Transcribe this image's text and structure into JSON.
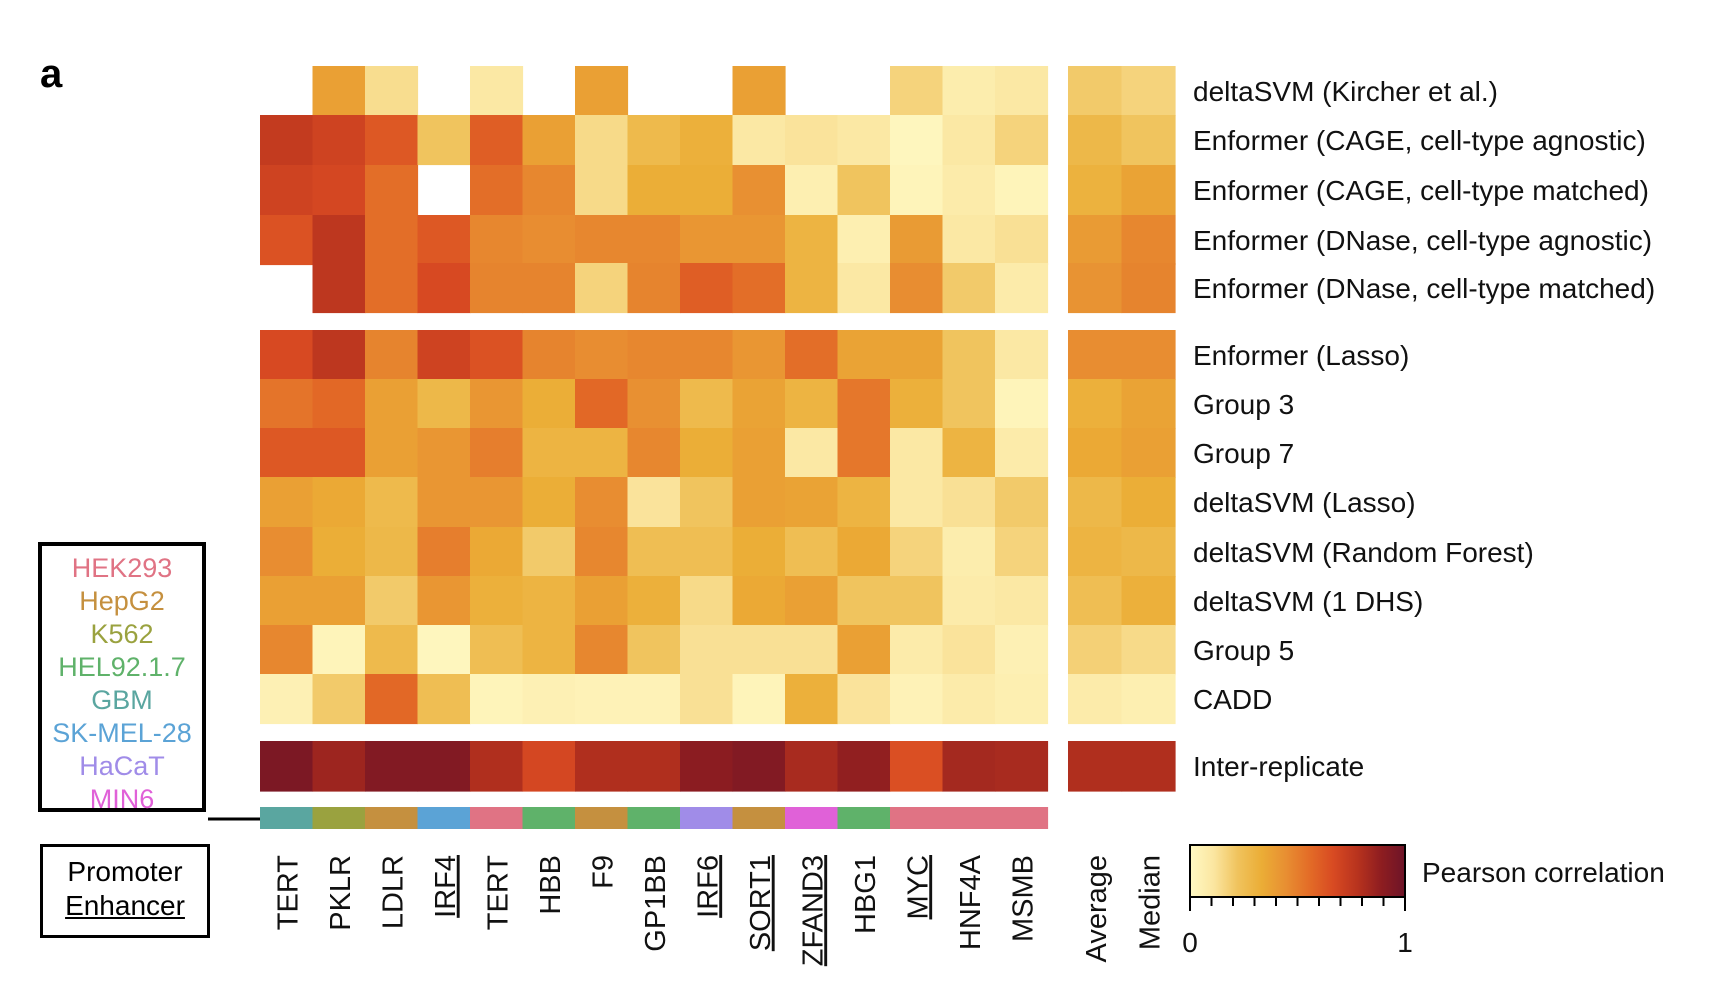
{
  "panel_label": "a",
  "colors": {
    "scale": [
      "#fff9c4",
      "#fbe6a0",
      "#f0c35d",
      "#ebad36",
      "#e88f32",
      "#e36c27",
      "#d84a22",
      "#b8331e",
      "#8e1d20",
      "#6d1428"
    ],
    "cell_lines": {
      "HEK293": "#e07384",
      "HepG2": "#c5903f",
      "K562": "#9aa23f",
      "HEL92.1.7": "#5fb26a",
      "GBM": "#5aa6a0",
      "SK-MEL-28": "#5ba3d6",
      "HaCaT": "#a08ce8",
      "MIN6": "#e061d8"
    }
  },
  "legend_cell_lines": [
    "HEK293",
    "HepG2",
    "K562",
    "HEL92.1.7",
    "GBM",
    "SK-MEL-28",
    "HaCaT",
    "MIN6"
  ],
  "legend_element_types": {
    "promoter": "Promoter",
    "enhancer": "Enhancer"
  },
  "chart_data": {
    "type": "heatmap",
    "colorbar": {
      "label": "Pearson correlation",
      "min": "0",
      "max": "1"
    },
    "columns": [
      {
        "label": "TERT",
        "cell_line": "GBM",
        "enhancer": false
      },
      {
        "label": "PKLR",
        "cell_line": "K562",
        "enhancer": false
      },
      {
        "label": "LDLR",
        "cell_line": "HepG2",
        "enhancer": false
      },
      {
        "label": "IRF4",
        "cell_line": "SK-MEL-28",
        "enhancer": true
      },
      {
        "label": "TERT",
        "cell_line": "HEK293",
        "enhancer": false
      },
      {
        "label": "HBB",
        "cell_line": "HEL92.1.7",
        "enhancer": false
      },
      {
        "label": "F9",
        "cell_line": "HepG2",
        "enhancer": false
      },
      {
        "label": "GP1BB",
        "cell_line": "HEL92.1.7",
        "enhancer": false
      },
      {
        "label": "IRF6",
        "cell_line": "HaCaT",
        "enhancer": true
      },
      {
        "label": "SORT1",
        "cell_line": "HepG2",
        "enhancer": true
      },
      {
        "label": "ZFAND3",
        "cell_line": "MIN6",
        "enhancer": true
      },
      {
        "label": "HBG1",
        "cell_line": "HEL92.1.7",
        "enhancer": false
      },
      {
        "label": "MYC",
        "cell_line": "HEK293",
        "enhancer": true
      },
      {
        "label": "HNF4A",
        "cell_line": "HEK293",
        "enhancer": false
      },
      {
        "label": "MSMB",
        "cell_line": "HEK293",
        "enhancer": false
      }
    ],
    "summary_columns": [
      "Average",
      "Median"
    ],
    "row_groups": [
      {
        "rows": [
          {
            "label": "deltaSVM (Kircher et al.)",
            "values": [
              null,
              0.38,
              0.14,
              null,
              0.1,
              null,
              0.38,
              null,
              null,
              0.38,
              null,
              null,
              0.17,
              0.07,
              0.1
            ],
            "summary": [
              0.2,
              0.17
            ]
          },
          {
            "label": "Enformer (CAGE, cell-type agnostic)",
            "values": [
              0.74,
              0.7,
              0.62,
              0.22,
              0.6,
              0.38,
              0.15,
              0.27,
              0.32,
              0.1,
              0.12,
              0.1,
              0.02,
              0.1,
              0.17
            ],
            "summary": [
              0.28,
              0.22
            ]
          },
          {
            "label": "Enformer (CAGE, cell-type matched)",
            "values": [
              0.7,
              0.68,
              0.55,
              null,
              0.55,
              0.47,
              0.15,
              0.33,
              0.33,
              0.44,
              0.06,
              0.22,
              0.03,
              0.08,
              0.03
            ],
            "summary": [
              0.31,
              0.37
            ]
          },
          {
            "label": "Enformer (DNase, cell-type agnostic)",
            "values": [
              0.64,
              0.76,
              0.55,
              0.62,
              0.47,
              0.45,
              0.47,
              0.47,
              0.42,
              0.42,
              0.3,
              0.06,
              0.4,
              0.1,
              0.13
            ],
            "summary": [
              0.4,
              0.47
            ]
          },
          {
            "label": "Enformer (DNase, cell-type matched)",
            "values": [
              null,
              0.76,
              0.55,
              0.67,
              0.48,
              0.48,
              0.17,
              0.48,
              0.6,
              0.55,
              0.3,
              0.1,
              0.45,
              0.2,
              0.08
            ],
            "summary": [
              0.43,
              0.48
            ]
          }
        ]
      },
      {
        "rows": [
          {
            "label": "Enformer (Lasso)",
            "values": [
              0.67,
              0.76,
              0.48,
              0.7,
              0.64,
              0.48,
              0.45,
              0.47,
              0.47,
              0.42,
              0.55,
              0.37,
              0.37,
              0.22,
              0.1
            ],
            "summary": [
              0.45,
              0.45
            ]
          },
          {
            "label": "Group 3",
            "values": [
              0.53,
              0.57,
              0.38,
              0.28,
              0.42,
              0.33,
              0.57,
              0.44,
              0.27,
              0.37,
              0.3,
              0.52,
              0.32,
              0.22,
              0.03
            ],
            "summary": [
              0.32,
              0.37
            ]
          },
          {
            "label": "Group 7",
            "values": [
              0.62,
              0.62,
              0.38,
              0.42,
              0.5,
              0.3,
              0.3,
              0.47,
              0.33,
              0.38,
              0.1,
              0.52,
              0.1,
              0.3,
              0.08
            ],
            "summary": [
              0.35,
              0.38
            ]
          },
          {
            "label": "deltaSVM (Lasso)",
            "values": [
              0.38,
              0.35,
              0.27,
              0.42,
              0.42,
              0.33,
              0.45,
              0.12,
              0.22,
              0.38,
              0.37,
              0.3,
              0.1,
              0.13,
              0.2
            ],
            "summary": [
              0.28,
              0.33
            ]
          },
          {
            "label": "deltaSVM (Random Forest)",
            "values": [
              0.45,
              0.33,
              0.28,
              0.5,
              0.35,
              0.2,
              0.47,
              0.25,
              0.25,
              0.33,
              0.25,
              0.35,
              0.17,
              0.07,
              0.17
            ],
            "summary": [
              0.3,
              0.28
            ]
          },
          {
            "label": "deltaSVM (1 DHS)",
            "values": [
              0.38,
              0.38,
              0.2,
              0.42,
              0.32,
              0.3,
              0.38,
              0.32,
              0.15,
              0.35,
              0.38,
              0.22,
              0.22,
              0.08,
              0.1
            ],
            "summary": [
              0.25,
              0.32
            ]
          },
          {
            "label": "Group 5",
            "values": [
              0.47,
              0.03,
              0.27,
              0.02,
              0.25,
              0.3,
              0.47,
              0.22,
              0.13,
              0.13,
              0.13,
              0.38,
              0.08,
              0.12,
              0.05
            ],
            "summary": [
              0.18,
              0.15
            ]
          },
          {
            "label": "CADD",
            "values": [
              0.05,
              0.2,
              0.57,
              0.25,
              0.03,
              0.05,
              0.04,
              0.04,
              0.13,
              0.03,
              0.32,
              0.12,
              0.04,
              0.08,
              0.06
            ],
            "summary": [
              0.08,
              0.06
            ]
          }
        ]
      },
      {
        "rows": [
          {
            "label": "Inter-replicate",
            "values": [
              0.95,
              0.85,
              0.93,
              0.93,
              0.8,
              0.68,
              0.8,
              0.8,
              0.9,
              0.93,
              0.82,
              0.88,
              0.65,
              0.83,
              0.82
            ],
            "summary": [
              0.8,
              0.8
            ]
          }
        ]
      }
    ]
  }
}
